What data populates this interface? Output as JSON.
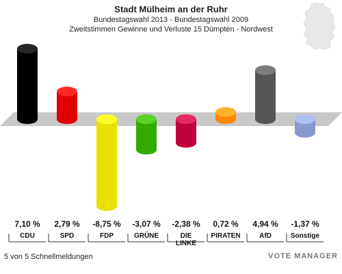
{
  "header": {
    "title": "Stadt Mülheim an der Ruhr",
    "subtitle": "Bundestagswahl 2013 - Bundestagswahl 2009",
    "description": "Zweitstimmen Gewinne und Verluste 15 Dümpten - Nordwest"
  },
  "footer": {
    "status": "5 von 5 Schnellmeldungen"
  },
  "logo": {
    "text": "VOTE MANAGER"
  },
  "chart_data": {
    "type": "bar",
    "categories": [
      "CDU",
      "SPD",
      "FDP",
      "GRÜNE",
      "DIE LINKE",
      "PIRATEN",
      "AfD",
      "Sonstige"
    ],
    "category_labels": [
      [
        "CDU"
      ],
      [
        "SPD"
      ],
      [
        "FDP"
      ],
      [
        "GRÜNE"
      ],
      [
        "DIE",
        "LINKE"
      ],
      [
        "PIRATEN"
      ],
      [
        "AfD"
      ],
      [
        "Sonstige"
      ]
    ],
    "values": [
      7.1,
      2.79,
      -8.75,
      -3.07,
      -2.38,
      0.72,
      4.94,
      -1.37
    ],
    "value_labels": [
      "7,10 %",
      "2,79 %",
      "-8,75 %",
      "-3,07 %",
      "-2,38 %",
      "0,72 %",
      "4,94 %",
      "-1,37 %"
    ],
    "colors": [
      "#000000",
      "#e00000",
      "#e8e000",
      "#33aa00",
      "#c0003a",
      "#ff8800",
      "#555555",
      "#8899cc"
    ],
    "title": "Stadt Mülheim an der Ruhr",
    "xlabel": "",
    "ylabel": ""
  }
}
